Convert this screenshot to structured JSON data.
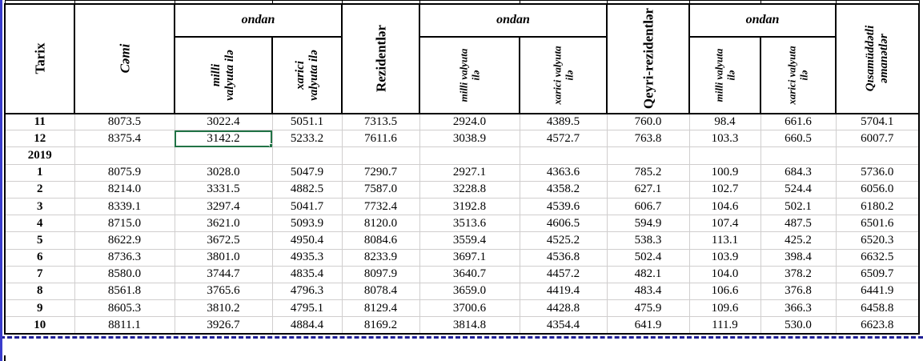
{
  "table": {
    "header": {
      "tarix": "Tarix",
      "cemi": "Cəmi",
      "ondan": "ondan",
      "rezidentler": "Rezidentlər",
      "qeyri_rezidentler": "Qeyri-rezidentlər",
      "qisamuddetli": "Qısamüddətli\nəmanətlər",
      "sub_milli_a": "milli\nvalyuta ilə",
      "sub_xarici_a": "xarici\nvalyuta ilə",
      "sub_milli_b": "milli valyuta\nilə",
      "sub_xarici_b": "xarici valyuta\nilə"
    },
    "rows": [
      {
        "label": "11",
        "values": [
          "8073.5",
          "3022.4",
          "5051.1",
          "7313.5",
          "2924.0",
          "4389.5",
          "760.0",
          "98.4",
          "661.6",
          "5704.1"
        ]
      },
      {
        "label": "12",
        "values": [
          "8375.4",
          "3142.2",
          "5233.2",
          "7611.6",
          "3038.9",
          "4572.7",
          "763.8",
          "103.3",
          "660.5",
          "6007.7"
        ]
      },
      {
        "label": "2019",
        "values": [
          "",
          "",
          "",
          "",
          "",
          "",
          "",
          "",
          "",
          ""
        ]
      },
      {
        "label": "1",
        "values": [
          "8075.9",
          "3028.0",
          "5047.9",
          "7290.7",
          "2927.1",
          "4363.6",
          "785.2",
          "100.9",
          "684.3",
          "5736.0"
        ]
      },
      {
        "label": "2",
        "values": [
          "8214.0",
          "3331.5",
          "4882.5",
          "7587.0",
          "3228.8",
          "4358.2",
          "627.1",
          "102.7",
          "524.4",
          "6056.0"
        ]
      },
      {
        "label": "3",
        "values": [
          "8339.1",
          "3297.4",
          "5041.7",
          "7732.4",
          "3192.8",
          "4539.6",
          "606.7",
          "104.6",
          "502.1",
          "6180.2"
        ]
      },
      {
        "label": "4",
        "values": [
          "8715.0",
          "3621.0",
          "5093.9",
          "8120.0",
          "3513.6",
          "4606.5",
          "594.9",
          "107.4",
          "487.5",
          "6501.6"
        ]
      },
      {
        "label": "5",
        "values": [
          "8622.9",
          "3672.5",
          "4950.4",
          "8084.6",
          "3559.4",
          "4525.2",
          "538.3",
          "113.1",
          "425.2",
          "6520.3"
        ]
      },
      {
        "label": "6",
        "values": [
          "8736.3",
          "3801.0",
          "4935.3",
          "8233.9",
          "3697.1",
          "4536.8",
          "502.4",
          "103.9",
          "398.4",
          "6632.5"
        ]
      },
      {
        "label": "7",
        "values": [
          "8580.0",
          "3744.7",
          "4835.4",
          "8097.9",
          "3640.7",
          "4457.2",
          "482.1",
          "104.0",
          "378.2",
          "6509.7"
        ]
      },
      {
        "label": "8",
        "values": [
          "8561.8",
          "3765.6",
          "4796.3",
          "8078.4",
          "3659.0",
          "4419.4",
          "483.4",
          "106.6",
          "376.8",
          "6441.9"
        ]
      },
      {
        "label": "9",
        "values": [
          "8605.3",
          "3810.2",
          "4795.1",
          "8129.4",
          "3700.6",
          "4428.8",
          "475.9",
          "109.6",
          "366.3",
          "6458.8"
        ]
      },
      {
        "label": "10",
        "values": [
          "8811.1",
          "3926.7",
          "4884.4",
          "8169.2",
          "3814.8",
          "4354.4",
          "641.9",
          "111.9",
          "530.0",
          "6623.8"
        ]
      }
    ],
    "selection": {
      "row_index": 1,
      "col_index": 1,
      "value": "3142.2"
    }
  },
  "colors": {
    "selection_green": "#217346",
    "pagebreak_blue": "#1f1f96",
    "pane_edge_blue": "#3a3ccc",
    "gridline_gray": "#d0cece",
    "border_black": "#000000",
    "background": "#ffffff"
  }
}
